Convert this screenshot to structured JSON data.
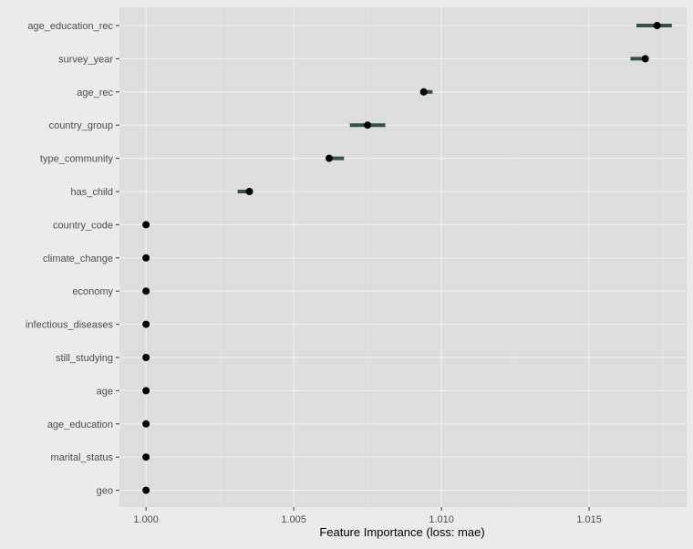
{
  "chart_data": {
    "type": "scatter",
    "title": "",
    "xlabel": "Feature Importance (loss: mae)",
    "ylabel": "",
    "xlim": [
      0.9991,
      1.0183
    ],
    "x_ticks": [
      1.0,
      1.005,
      1.01,
      1.015
    ],
    "x_tick_labels": [
      "1.000",
      "1.005",
      "1.010",
      "1.015"
    ],
    "grid": true,
    "legend": "none",
    "colors": {
      "point": "#000000",
      "interval": "#35504a",
      "panel": "#dddddd",
      "grid": "#f2f2f2",
      "background": "#ebebeb"
    },
    "features": [
      "age_education_rec",
      "survey_year",
      "age_rec",
      "country_group",
      "type_community",
      "has_child",
      "country_code",
      "climate_change",
      "economy",
      "infectious_diseases",
      "still_studying",
      "age",
      "age_education",
      "marital_status",
      "geo"
    ],
    "points": [
      {
        "feature": "age_education_rec",
        "x": 1.0173,
        "low": 1.0166,
        "high": 1.0178
      },
      {
        "feature": "survey_year",
        "x": 1.0169,
        "low": 1.0164,
        "high": 1.0169
      },
      {
        "feature": "age_rec",
        "x": 1.0094,
        "low": 1.0094,
        "high": 1.0097
      },
      {
        "feature": "country_group",
        "x": 1.0075,
        "low": 1.0069,
        "high": 1.0081
      },
      {
        "feature": "type_community",
        "x": 1.0062,
        "low": 1.0062,
        "high": 1.0067
      },
      {
        "feature": "has_child",
        "x": 1.0035,
        "low": 1.0031,
        "high": 1.0035
      },
      {
        "feature": "country_code",
        "x": 1.0,
        "low": 1.0,
        "high": 1.0
      },
      {
        "feature": "climate_change",
        "x": 1.0,
        "low": 1.0,
        "high": 1.0
      },
      {
        "feature": "economy",
        "x": 1.0,
        "low": 1.0,
        "high": 1.0
      },
      {
        "feature": "infectious_diseases",
        "x": 1.0,
        "low": 1.0,
        "high": 1.0
      },
      {
        "feature": "still_studying",
        "x": 1.0,
        "low": 1.0,
        "high": 1.0
      },
      {
        "feature": "age",
        "x": 1.0,
        "low": 1.0,
        "high": 1.0
      },
      {
        "feature": "age_education",
        "x": 1.0,
        "low": 1.0,
        "high": 1.0
      },
      {
        "feature": "marital_status",
        "x": 1.0,
        "low": 1.0,
        "high": 1.0
      },
      {
        "feature": "geo",
        "x": 1.0,
        "low": 1.0,
        "high": 1.0
      }
    ]
  }
}
